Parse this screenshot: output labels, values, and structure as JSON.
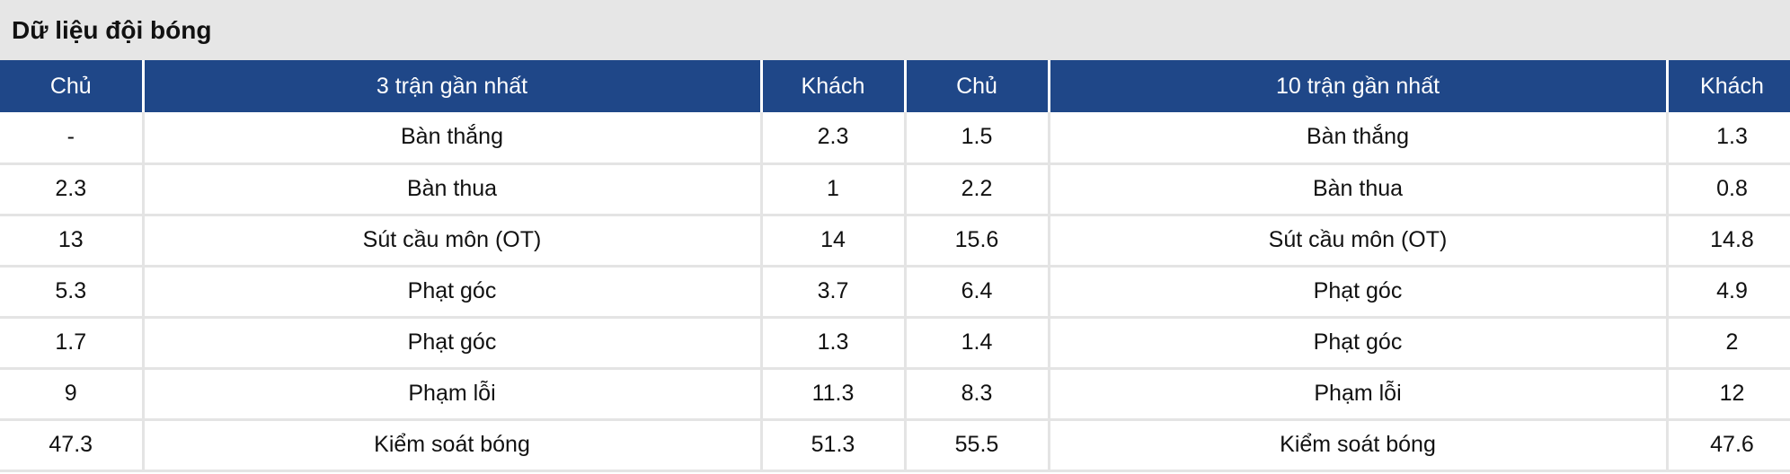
{
  "title": "Dữ liệu đội bóng",
  "header": [
    "Chủ",
    "3 trận gần nhất",
    "Khách",
    "Chủ",
    "10 trận gần nhất",
    "Khách"
  ],
  "rows": [
    [
      "-",
      "Bàn thắng",
      "2.3",
      "1.5",
      "Bàn thắng",
      "1.3"
    ],
    [
      "2.3",
      "Bàn thua",
      "1",
      "2.2",
      "Bàn thua",
      "0.8"
    ],
    [
      "13",
      "Sút cầu môn (OT)",
      "14",
      "15.6",
      "Sút cầu môn (OT)",
      "14.8"
    ],
    [
      "5.3",
      "Phạt góc",
      "3.7",
      "6.4",
      "Phạt góc",
      "4.9"
    ],
    [
      "1.7",
      "Phạt góc",
      "1.3",
      "1.4",
      "Phạt góc",
      "2"
    ],
    [
      "9",
      "Phạm lỗi",
      "11.3",
      "8.3",
      "Phạm lỗi",
      "12"
    ],
    [
      "47.3",
      "Kiểm soát bóng",
      "51.3",
      "55.5",
      "Kiểm soát bóng",
      "47.6"
    ]
  ],
  "colors": {
    "header_bg": "#1f4788",
    "title_bg": "#e6e6e6"
  }
}
